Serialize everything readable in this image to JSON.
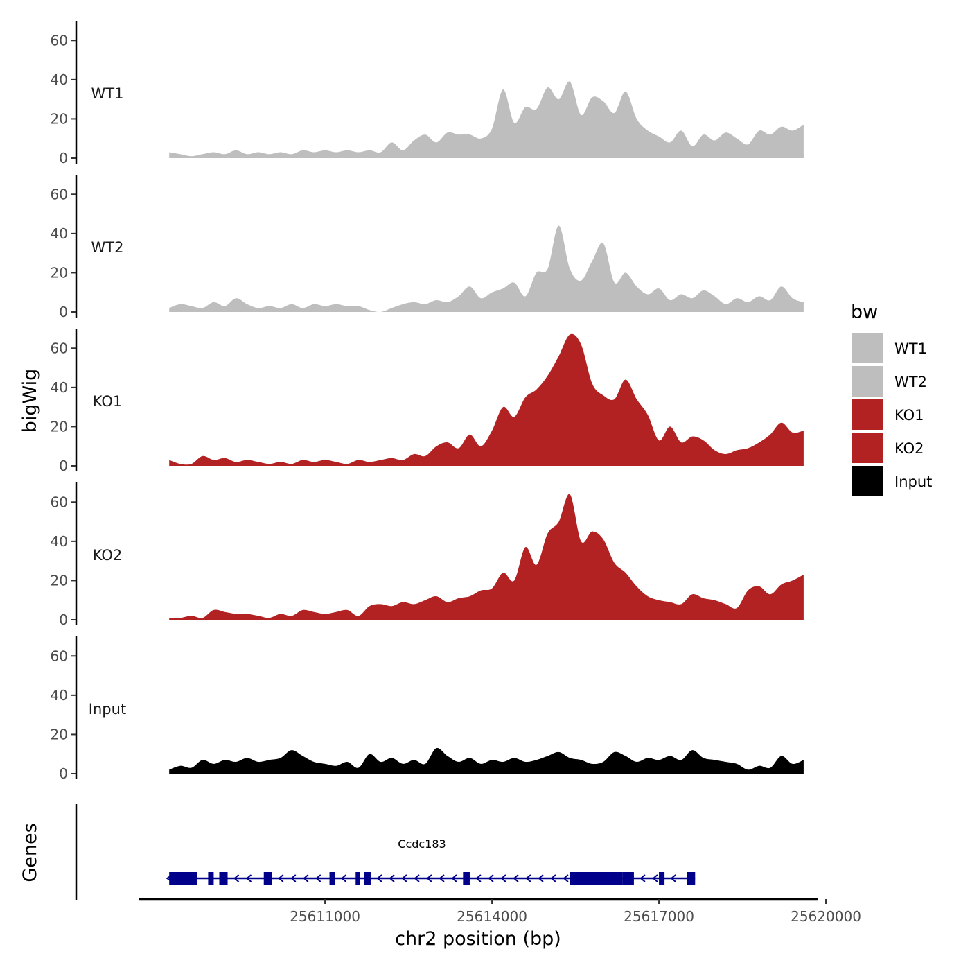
{
  "chart_data": {
    "type": "area",
    "region": {
      "chrom": "chr2",
      "start": 25608200,
      "end": 25619600
    },
    "xlabel": "chr2 position (bp)",
    "ylabel": "bigWig",
    "gene_track_label": "Genes",
    "x_ticks": [
      25611000,
      25614000,
      25617000,
      25620000
    ],
    "x_tick_labels": [
      "25611000",
      "25614000",
      "25617000",
      "25620000"
    ],
    "xlim": [
      25607650,
      25619850
    ],
    "ylim": [
      0,
      70
    ],
    "y_ticks": [
      0,
      20,
      40,
      60
    ],
    "y_tick_labels": [
      "0",
      "20",
      "40",
      "60"
    ],
    "series": [
      {
        "name": "WT1",
        "color": "#bebebe",
        "x": [
          25608200,
          25608400,
          25608600,
          25608800,
          25609000,
          25609200,
          25609400,
          25609600,
          25609800,
          25610000,
          25610200,
          25610400,
          25610600,
          25610800,
          25611000,
          25611200,
          25611400,
          25611600,
          25611800,
          25612000,
          25612200,
          25612400,
          25612600,
          25612800,
          25613000,
          25613200,
          25613400,
          25613600,
          25613800,
          25614000,
          25614200,
          25614400,
          25614600,
          25614800,
          25615000,
          25615200,
          25615400,
          25615600,
          25615800,
          25616000,
          25616200,
          25616400,
          25616600,
          25616800,
          25617000,
          25617200,
          25617400,
          25617600,
          25617800,
          25618000,
          25618200,
          25618400,
          25618600,
          25618800,
          25619000,
          25619200,
          25619400,
          25619600
        ],
        "values": [
          3,
          2,
          1,
          2,
          3,
          2,
          4,
          2,
          3,
          2,
          3,
          2,
          4,
          3,
          4,
          3,
          4,
          3,
          4,
          3,
          8,
          4,
          9,
          12,
          8,
          13,
          12,
          12,
          10,
          15,
          35,
          18,
          26,
          25,
          36,
          30,
          39,
          22,
          31,
          29,
          23,
          34,
          20,
          14,
          11,
          8,
          14,
          6,
          12,
          9,
          13,
          10,
          7,
          14,
          12,
          16,
          14,
          17
        ]
      },
      {
        "name": "WT2",
        "color": "#bebebe",
        "x": [
          25608200,
          25608400,
          25608600,
          25608800,
          25609000,
          25609200,
          25609400,
          25609600,
          25609800,
          25610000,
          25610200,
          25610400,
          25610600,
          25610800,
          25611000,
          25611200,
          25611400,
          25611600,
          25611800,
          25612000,
          25612200,
          25612400,
          25612600,
          25612800,
          25613000,
          25613200,
          25613400,
          25613600,
          25613800,
          25614000,
          25614200,
          25614400,
          25614600,
          25614800,
          25615000,
          25615200,
          25615400,
          25615600,
          25615800,
          25616000,
          25616200,
          25616400,
          25616600,
          25616800,
          25617000,
          25617200,
          25617400,
          25617600,
          25617800,
          25618000,
          25618200,
          25618400,
          25618600,
          25618800,
          25619000,
          25619200,
          25619400,
          25619600
        ],
        "values": [
          2,
          4,
          3,
          2,
          5,
          3,
          7,
          4,
          2,
          3,
          2,
          4,
          2,
          4,
          3,
          4,
          3,
          3,
          1,
          0,
          2,
          4,
          5,
          4,
          6,
          5,
          8,
          13,
          7,
          10,
          12,
          15,
          8,
          20,
          22,
          44,
          22,
          16,
          26,
          35,
          15,
          20,
          13,
          9,
          12,
          6,
          9,
          7,
          11,
          8,
          4,
          7,
          5,
          8,
          6,
          13,
          7,
          5
        ]
      },
      {
        "name": "KO1",
        "color": "#b22222",
        "x": [
          25608200,
          25608400,
          25608600,
          25608800,
          25609000,
          25609200,
          25609400,
          25609600,
          25609800,
          25610000,
          25610200,
          25610400,
          25610600,
          25610800,
          25611000,
          25611200,
          25611400,
          25611600,
          25611800,
          25612000,
          25612200,
          25612400,
          25612600,
          25612800,
          25613000,
          25613200,
          25613400,
          25613600,
          25613800,
          25614000,
          25614200,
          25614400,
          25614600,
          25614800,
          25615000,
          25615200,
          25615400,
          25615600,
          25615800,
          25616000,
          25616200,
          25616400,
          25616600,
          25616800,
          25617000,
          25617200,
          25617400,
          25617600,
          25617800,
          25618000,
          25618200,
          25618400,
          25618600,
          25618800,
          25619000,
          25619200,
          25619400,
          25619600
        ],
        "values": [
          3,
          1,
          1,
          5,
          3,
          4,
          2,
          3,
          2,
          1,
          2,
          1,
          3,
          2,
          3,
          2,
          1,
          3,
          2,
          3,
          4,
          3,
          6,
          5,
          10,
          12,
          9,
          16,
          10,
          18,
          30,
          25,
          35,
          39,
          46,
          56,
          67,
          62,
          42,
          36,
          34,
          44,
          34,
          26,
          13,
          20,
          12,
          15,
          13,
          8,
          6,
          8,
          9,
          12,
          16,
          22,
          17,
          18
        ]
      },
      {
        "name": "KO2",
        "color": "#b22222",
        "x": [
          25608200,
          25608400,
          25608600,
          25608800,
          25609000,
          25609200,
          25609400,
          25609600,
          25609800,
          25610000,
          25610200,
          25610400,
          25610600,
          25610800,
          25611000,
          25611200,
          25611400,
          25611600,
          25611800,
          25612000,
          25612200,
          25612400,
          25612600,
          25612800,
          25613000,
          25613200,
          25613400,
          25613600,
          25613800,
          25614000,
          25614200,
          25614400,
          25614600,
          25614800,
          25615000,
          25615200,
          25615400,
          25615600,
          25615800,
          25616000,
          25616200,
          25616400,
          25616600,
          25616800,
          25617000,
          25617200,
          25617400,
          25617600,
          25617800,
          25618000,
          25618200,
          25618400,
          25618600,
          25618800,
          25619000,
          25619200,
          25619400,
          25619600
        ],
        "values": [
          1,
          1,
          2,
          1,
          5,
          4,
          3,
          3,
          2,
          1,
          3,
          2,
          5,
          4,
          3,
          4,
          5,
          2,
          7,
          8,
          7,
          9,
          8,
          10,
          12,
          9,
          11,
          12,
          15,
          16,
          24,
          20,
          37,
          28,
          44,
          50,
          64,
          40,
          45,
          41,
          29,
          24,
          17,
          12,
          10,
          9,
          8,
          13,
          11,
          10,
          8,
          6,
          15,
          17,
          13,
          18,
          20,
          23
        ]
      },
      {
        "name": "Input",
        "color": "#000000",
        "x": [
          25608200,
          25608400,
          25608600,
          25608800,
          25609000,
          25609200,
          25609400,
          25609600,
          25609800,
          25610000,
          25610200,
          25610400,
          25610600,
          25610800,
          25611000,
          25611200,
          25611400,
          25611600,
          25611800,
          25612000,
          25612200,
          25612400,
          25612600,
          25612800,
          25613000,
          25613200,
          25613400,
          25613600,
          25613800,
          25614000,
          25614200,
          25614400,
          25614600,
          25614800,
          25615000,
          25615200,
          25615400,
          25615600,
          25615800,
          25616000,
          25616200,
          25616400,
          25616600,
          25616800,
          25617000,
          25617200,
          25617400,
          25617600,
          25617800,
          25618000,
          25618200,
          25618400,
          25618600,
          25618800,
          25619000,
          25619200,
          25619400,
          25619600
        ],
        "values": [
          2,
          4,
          3,
          7,
          5,
          7,
          6,
          8,
          6,
          7,
          8,
          12,
          9,
          6,
          5,
          4,
          6,
          3,
          10,
          6,
          8,
          5,
          7,
          5,
          13,
          9,
          6,
          8,
          5,
          7,
          6,
          8,
          6,
          7,
          9,
          11,
          8,
          7,
          5,
          6,
          11,
          9,
          6,
          8,
          7,
          9,
          7,
          12,
          8,
          7,
          6,
          5,
          2,
          4,
          3,
          9,
          5,
          7
        ]
      }
    ],
    "tracks": [
      {
        "label": "WT1",
        "series": "WT1"
      },
      {
        "label": "WT2",
        "series": "WT2"
      },
      {
        "label": "KO1",
        "series": "KO1"
      },
      {
        "label": "KO2",
        "series": "KO2"
      },
      {
        "label": "Input",
        "series": "Input"
      }
    ],
    "legend": {
      "title": "bw",
      "position": "right",
      "entries": [
        {
          "label": "WT1",
          "color": "#bebebe"
        },
        {
          "label": "WT2",
          "color": "#bebebe"
        },
        {
          "label": "KO1",
          "color": "#b22222"
        },
        {
          "label": "KO2",
          "color": "#b22222"
        },
        {
          "label": "Input",
          "color": "#000000"
        }
      ]
    },
    "gene": {
      "name": "Ccdc183",
      "strand": "-",
      "color": "#00008b",
      "start": 25608200,
      "end": 25617650,
      "exons": [
        [
          25608200,
          25608700
        ],
        [
          25608900,
          25609000
        ],
        [
          25609100,
          25609250
        ],
        [
          25609900,
          25610050
        ],
        [
          25611080,
          25611180
        ],
        [
          25611550,
          25611600
        ],
        [
          25611700,
          25611820
        ],
        [
          25613480,
          25613600
        ],
        [
          25615400,
          25616350
        ],
        [
          25616350,
          25616550
        ],
        [
          25617000,
          25617100
        ],
        [
          25617500,
          25617650
        ]
      ]
    }
  }
}
